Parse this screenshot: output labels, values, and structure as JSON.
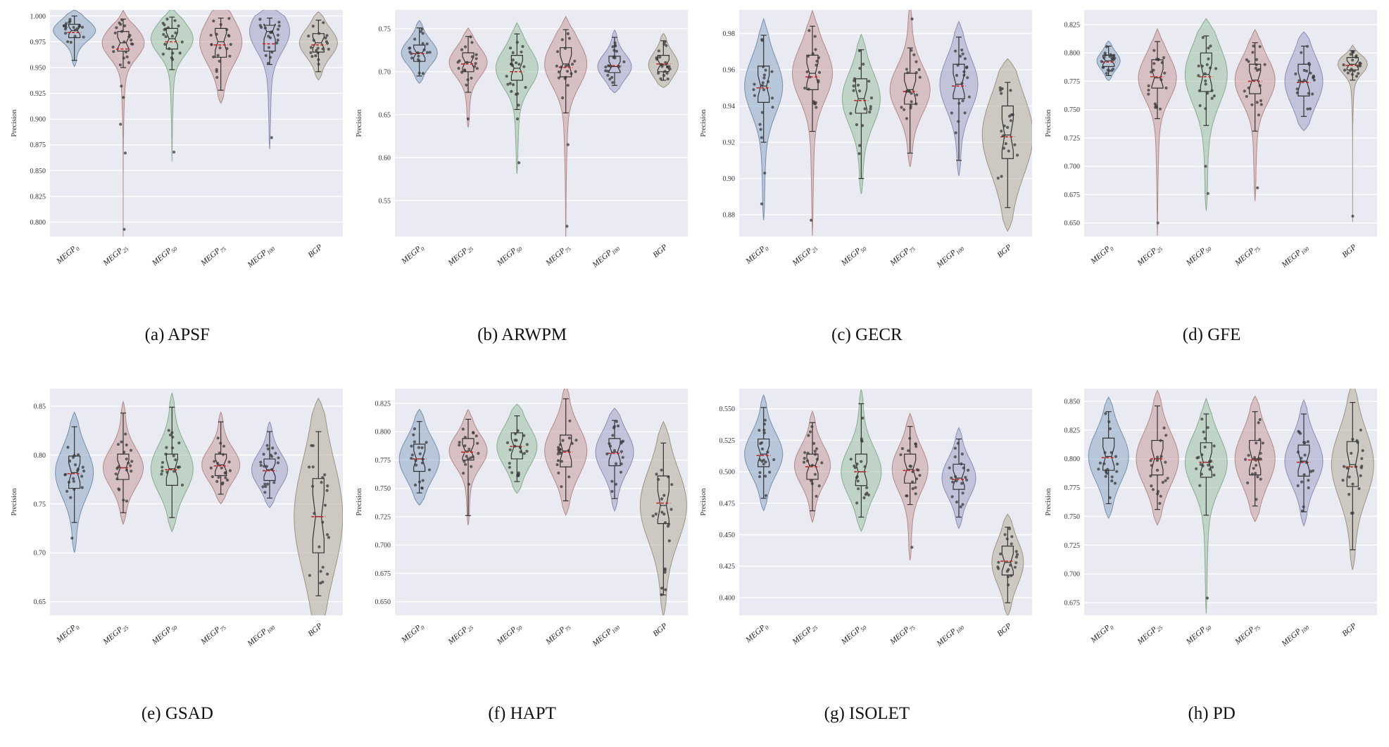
{
  "figure": {
    "ylabel": "Precision"
  },
  "categories": [
    {
      "base": "MEGP",
      "sub": "0"
    },
    {
      "base": "MEGP",
      "sub": "25"
    },
    {
      "base": "MEGP",
      "sub": "50"
    },
    {
      "base": "MEGP",
      "sub": "75"
    },
    {
      "base": "MEGP",
      "sub": "100"
    },
    {
      "base": "BGP",
      "sub": ""
    }
  ],
  "palette": {
    "background": "#eaeaf2",
    "grid": "#ffffff",
    "box": "#333333",
    "point": "#3a3a3a",
    "mean": "#cc2222",
    "violin_fills": [
      "#8da7c4",
      "#c79c9c",
      "#9cbfa4",
      "#c79c9c",
      "#9fa3c8",
      "#b3ab9b"
    ],
    "violin_strokes": [
      "#6c88a8",
      "#ad8181",
      "#7ea788",
      "#ad8181",
      "#8286b0",
      "#968d7c"
    ]
  },
  "chart_data": [
    {
      "type": "violin",
      "name": "APSF",
      "caption": "(a) APSF",
      "ylabel": "Precision",
      "ylim": [
        0.786,
        1.006
      ],
      "ydec": 3,
      "yticks": [
        0.8,
        0.825,
        0.85,
        0.875,
        0.9,
        0.925,
        0.95,
        0.975,
        1.0
      ],
      "series": [
        {
          "lo": 0.957,
          "q1": 0.979,
          "md": 0.986,
          "q3": 0.992,
          "hi": 1.0,
          "mn": 0.984,
          "w": 1,
          "out": []
        },
        {
          "lo": 0.95,
          "q1": 0.966,
          "md": 0.974,
          "q3": 0.985,
          "hi": 0.997,
          "mn": 0.968,
          "w": 1,
          "out": [
            0.932,
            0.921,
            0.895,
            0.867,
            0.793
          ]
        },
        {
          "lo": 0.948,
          "q1": 0.968,
          "md": 0.978,
          "q3": 0.988,
          "hi": 0.999,
          "mn": 0.975,
          "w": 1,
          "out": [
            0.868
          ]
        },
        {
          "lo": 0.928,
          "q1": 0.96,
          "md": 0.975,
          "q3": 0.988,
          "hi": 0.998,
          "mn": 0.972,
          "w": 1,
          "out": []
        },
        {
          "lo": 0.953,
          "q1": 0.966,
          "md": 0.985,
          "q3": 0.991,
          "hi": 0.998,
          "mn": 0.973,
          "w": 0.95,
          "out": [
            0.882
          ]
        },
        {
          "lo": 0.946,
          "q1": 0.965,
          "md": 0.974,
          "q3": 0.983,
          "hi": 0.996,
          "mn": 0.972,
          "w": 0.9,
          "out": []
        }
      ]
    },
    {
      "type": "violin",
      "name": "ARWPM",
      "caption": "(b) ARWPM",
      "ylabel": "Precision",
      "ylim": [
        0.508,
        0.772
      ],
      "ydec": 2,
      "yticks": [
        0.55,
        0.6,
        0.65,
        0.7,
        0.75
      ],
      "series": [
        {
          "lo": 0.695,
          "q1": 0.712,
          "md": 0.722,
          "q3": 0.731,
          "hi": 0.751,
          "mn": 0.721,
          "w": 0.85,
          "out": []
        },
        {
          "lo": 0.676,
          "q1": 0.7,
          "md": 0.711,
          "q3": 0.722,
          "hi": 0.741,
          "mn": 0.709,
          "w": 0.9,
          "out": [
            0.645
          ]
        },
        {
          "lo": 0.656,
          "q1": 0.69,
          "md": 0.704,
          "q3": 0.719,
          "hi": 0.744,
          "mn": 0.7,
          "w": 1,
          "out": [
            0.661,
            0.645,
            0.594
          ]
        },
        {
          "lo": 0.652,
          "q1": 0.694,
          "md": 0.709,
          "q3": 0.728,
          "hi": 0.749,
          "mn": 0.705,
          "w": 1,
          "out": [
            0.615,
            0.52
          ]
        },
        {
          "lo": 0.684,
          "q1": 0.699,
          "md": 0.706,
          "q3": 0.718,
          "hi": 0.74,
          "mn": 0.707,
          "w": 0.8,
          "out": []
        },
        {
          "lo": 0.69,
          "q1": 0.7,
          "md": 0.708,
          "q3": 0.719,
          "hi": 0.736,
          "mn": 0.709,
          "w": 0.7,
          "out": []
        }
      ]
    },
    {
      "type": "violin",
      "name": "GECR",
      "caption": "(c) GECR",
      "ylabel": "Precision",
      "ylim": [
        0.868,
        0.993
      ],
      "ydec": 2,
      "yticks": [
        0.88,
        0.9,
        0.92,
        0.94,
        0.96,
        0.98
      ],
      "series": [
        {
          "lo": 0.92,
          "q1": 0.942,
          "md": 0.951,
          "q3": 0.962,
          "hi": 0.979,
          "mn": 0.95,
          "w": 0.9,
          "out": [
            0.903,
            0.886
          ]
        },
        {
          "lo": 0.926,
          "q1": 0.949,
          "md": 0.958,
          "q3": 0.968,
          "hi": 0.984,
          "mn": 0.956,
          "w": 0.95,
          "out": [
            0.877
          ]
        },
        {
          "lo": 0.9,
          "q1": 0.936,
          "md": 0.944,
          "q3": 0.955,
          "hi": 0.971,
          "mn": 0.943,
          "w": 0.9,
          "out": []
        },
        {
          "lo": 0.914,
          "q1": 0.941,
          "md": 0.949,
          "q3": 0.958,
          "hi": 0.972,
          "mn": 0.948,
          "w": 0.95,
          "out": [
            0.988
          ]
        },
        {
          "lo": 0.91,
          "q1": 0.944,
          "md": 0.952,
          "q3": 0.963,
          "hi": 0.978,
          "mn": 0.951,
          "w": 0.9,
          "out": []
        },
        {
          "lo": 0.884,
          "q1": 0.911,
          "md": 0.924,
          "q3": 0.94,
          "hi": 0.953,
          "mn": 0.923,
          "w": 1.2,
          "out": []
        }
      ]
    },
    {
      "type": "violin",
      "name": "GFE",
      "caption": "(d) GFE",
      "ylabel": "Precision",
      "ylim": [
        0.638,
        0.838
      ],
      "ydec": 3,
      "yticks": [
        0.65,
        0.675,
        0.7,
        0.725,
        0.75,
        0.775,
        0.8,
        0.825
      ],
      "series": [
        {
          "lo": 0.78,
          "q1": 0.788,
          "md": 0.793,
          "q3": 0.798,
          "hi": 0.806,
          "mn": 0.792,
          "w": 0.55,
          "out": []
        },
        {
          "lo": 0.742,
          "q1": 0.769,
          "md": 0.778,
          "q3": 0.794,
          "hi": 0.81,
          "mn": 0.779,
          "w": 0.9,
          "out": [
            0.65
          ]
        },
        {
          "lo": 0.736,
          "q1": 0.766,
          "md": 0.781,
          "q3": 0.8,
          "hi": 0.815,
          "mn": 0.779,
          "w": 1,
          "out": [
            0.7,
            0.676
          ]
        },
        {
          "lo": 0.731,
          "q1": 0.764,
          "md": 0.776,
          "q3": 0.79,
          "hi": 0.809,
          "mn": 0.775,
          "w": 0.95,
          "out": [
            0.681
          ]
        },
        {
          "lo": 0.744,
          "q1": 0.762,
          "md": 0.775,
          "q3": 0.79,
          "hi": 0.806,
          "mn": 0.774,
          "w": 0.9,
          "out": []
        },
        {
          "lo": 0.776,
          "q1": 0.785,
          "md": 0.79,
          "q3": 0.796,
          "hi": 0.802,
          "mn": 0.789,
          "w": 0.7,
          "out": [
            0.656
          ]
        }
      ]
    },
    {
      "type": "violin",
      "name": "GSAD",
      "caption": "(e) GSAD",
      "ylabel": "Precision",
      "ylim": [
        0.636,
        0.868
      ],
      "ydec": 2,
      "yticks": [
        0.65,
        0.7,
        0.75,
        0.8,
        0.85
      ],
      "series": [
        {
          "lo": 0.731,
          "q1": 0.766,
          "md": 0.782,
          "q3": 0.799,
          "hi": 0.829,
          "mn": 0.781,
          "w": 0.9,
          "out": [
            0.715
          ]
        },
        {
          "lo": 0.741,
          "q1": 0.775,
          "md": 0.787,
          "q3": 0.801,
          "hi": 0.843,
          "mn": 0.787,
          "w": 0.95,
          "out": []
        },
        {
          "lo": 0.736,
          "q1": 0.769,
          "md": 0.786,
          "q3": 0.801,
          "hi": 0.849,
          "mn": 0.785,
          "w": 1,
          "out": []
        },
        {
          "lo": 0.76,
          "q1": 0.779,
          "md": 0.79,
          "q3": 0.801,
          "hi": 0.834,
          "mn": 0.789,
          "w": 0.9,
          "out": []
        },
        {
          "lo": 0.756,
          "q1": 0.774,
          "md": 0.785,
          "q3": 0.796,
          "hi": 0.824,
          "mn": 0.784,
          "w": 0.85,
          "out": []
        },
        {
          "lo": 0.656,
          "q1": 0.7,
          "md": 0.737,
          "q3": 0.776,
          "hi": 0.824,
          "mn": 0.737,
          "w": 1.15,
          "out": [
            0.681,
            0.669
          ]
        }
      ]
    },
    {
      "type": "violin",
      "name": "HAPT",
      "caption": "(f) HAPT",
      "ylabel": "Precision",
      "ylim": [
        0.638,
        0.838
      ],
      "ydec": 3,
      "yticks": [
        0.65,
        0.675,
        0.7,
        0.725,
        0.75,
        0.775,
        0.8,
        0.825
      ],
      "series": [
        {
          "lo": 0.746,
          "q1": 0.765,
          "md": 0.776,
          "q3": 0.789,
          "hi": 0.809,
          "mn": 0.776,
          "w": 0.95,
          "out": []
        },
        {
          "lo": 0.726,
          "q1": 0.775,
          "md": 0.783,
          "q3": 0.794,
          "hi": 0.811,
          "mn": 0.782,
          "w": 0.9,
          "out": []
        },
        {
          "lo": 0.756,
          "q1": 0.776,
          "md": 0.787,
          "q3": 0.799,
          "hi": 0.814,
          "mn": 0.787,
          "w": 0.95,
          "out": []
        },
        {
          "lo": 0.739,
          "q1": 0.769,
          "md": 0.783,
          "q3": 0.797,
          "hi": 0.829,
          "mn": 0.782,
          "w": 1,
          "out": []
        },
        {
          "lo": 0.741,
          "q1": 0.77,
          "md": 0.782,
          "q3": 0.794,
          "hi": 0.81,
          "mn": 0.781,
          "w": 0.9,
          "out": []
        },
        {
          "lo": 0.656,
          "q1": 0.719,
          "md": 0.735,
          "q3": 0.761,
          "hi": 0.79,
          "mn": 0.737,
          "w": 1.1,
          "out": [
            0.678,
            0.662
          ]
        }
      ]
    },
    {
      "type": "violin",
      "name": "ISOLET",
      "caption": "(g) ISOLET",
      "ylabel": "Precision",
      "ylim": [
        0.386,
        0.566
      ],
      "ydec": 3,
      "yticks": [
        0.4,
        0.425,
        0.45,
        0.475,
        0.5,
        0.525,
        0.55
      ],
      "series": [
        {
          "lo": 0.479,
          "q1": 0.504,
          "md": 0.514,
          "q3": 0.526,
          "hi": 0.551,
          "mn": 0.513,
          "w": 0.9,
          "out": []
        },
        {
          "lo": 0.469,
          "q1": 0.494,
          "md": 0.505,
          "q3": 0.514,
          "hi": 0.539,
          "mn": 0.504,
          "w": 0.85,
          "out": []
        },
        {
          "lo": 0.464,
          "q1": 0.489,
          "md": 0.5,
          "q3": 0.514,
          "hi": 0.554,
          "mn": 0.5,
          "w": 0.95,
          "out": []
        },
        {
          "lo": 0.474,
          "q1": 0.491,
          "md": 0.502,
          "q3": 0.514,
          "hi": 0.536,
          "mn": 0.501,
          "w": 0.85,
          "out": [
            0.44
          ]
        },
        {
          "lo": 0.464,
          "q1": 0.486,
          "md": 0.495,
          "q3": 0.506,
          "hi": 0.526,
          "mn": 0.494,
          "w": 0.8,
          "out": []
        },
        {
          "lo": 0.396,
          "q1": 0.418,
          "md": 0.428,
          "q3": 0.441,
          "hi": 0.456,
          "mn": 0.429,
          "w": 0.75,
          "out": []
        }
      ]
    },
    {
      "type": "violin",
      "name": "PD",
      "caption": "(h) PD",
      "ylabel": "Precision",
      "ylim": [
        0.664,
        0.861
      ],
      "ydec": 3,
      "yticks": [
        0.675,
        0.7,
        0.725,
        0.75,
        0.775,
        0.8,
        0.825,
        0.85
      ],
      "series": [
        {
          "lo": 0.761,
          "q1": 0.79,
          "md": 0.802,
          "q3": 0.818,
          "hi": 0.841,
          "mn": 0.801,
          "w": 0.95,
          "out": []
        },
        {
          "lo": 0.756,
          "q1": 0.786,
          "md": 0.8,
          "q3": 0.816,
          "hi": 0.846,
          "mn": 0.8,
          "w": 1,
          "out": []
        },
        {
          "lo": 0.751,
          "q1": 0.784,
          "md": 0.797,
          "q3": 0.814,
          "hi": 0.839,
          "mn": 0.797,
          "w": 1,
          "out": [
            0.679
          ]
        },
        {
          "lo": 0.759,
          "q1": 0.786,
          "md": 0.8,
          "q3": 0.816,
          "hi": 0.841,
          "mn": 0.799,
          "w": 0.95,
          "out": []
        },
        {
          "lo": 0.754,
          "q1": 0.785,
          "md": 0.798,
          "q3": 0.812,
          "hi": 0.839,
          "mn": 0.797,
          "w": 0.9,
          "out": []
        },
        {
          "lo": 0.721,
          "q1": 0.776,
          "md": 0.795,
          "q3": 0.815,
          "hi": 0.849,
          "mn": 0.793,
          "w": 1,
          "out": []
        }
      ]
    }
  ]
}
